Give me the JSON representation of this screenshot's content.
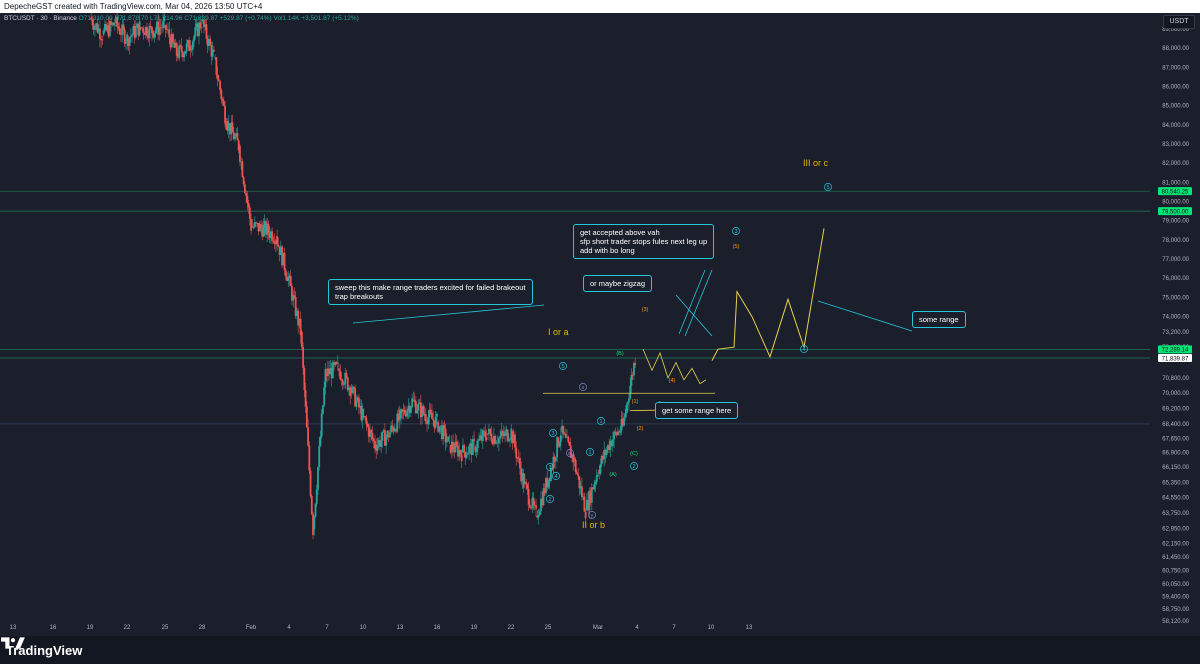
{
  "topbar": {
    "text": "DepecheGST created with TradingView.com, Mar 04, 2026 13:50 UTC+4"
  },
  "legend": {
    "symbol": "BTCUSDT · 30 · Binance",
    "ohlc": "O71,310.00 H71,878.70 L71,214.96 C71,839.87 +529.87 (+0.74%) Vol1.14K +3,501.87 (+5.12%)"
  },
  "currency": "USDT",
  "footer": {
    "brand": "TradingView"
  },
  "colors": {
    "background": "#1b1f2c",
    "up": "#26a69a",
    "down": "#ef5350",
    "projection": "#e6d14a",
    "note_border": "#26c6da",
    "level_green": "#00e676",
    "axis_text": "#b2b5be"
  },
  "notes": {
    "sweep": "sweep this make range traders excited for failed brakeout\ntrap breakouts",
    "accepted": "get accepted above vah\nsfp short trader stops fules next leg up\nadd with bo long",
    "zigzag": "or maybe zigzag",
    "range_here": "get some range here",
    "some_range": "some range"
  },
  "wave_labels": {
    "i_or_a": "I or a",
    "ii_or_b": "II or b",
    "iii_or_c": "III or c"
  },
  "chart_data": {
    "type": "line",
    "symbol": "BTCUSDT",
    "timeframe": "30",
    "exchange": "Binance",
    "y_axis_ticks": [
      "89,000.00",
      "88,000.00",
      "87,000.00",
      "86,000.00",
      "85,000.00",
      "84,000.00",
      "83,000.00",
      "82,000.00",
      "81,000.00",
      "80,000.00",
      "79,000.00",
      "78,000.00",
      "77,000.00",
      "76,000.00",
      "75,000.00",
      "74,000.00",
      "73,200.00",
      "72,400.00",
      "70,800.00",
      "70,000.00",
      "69,200.00",
      "68,400.00",
      "67,650.00",
      "66,900.00",
      "66,150.00",
      "65,350.00",
      "64,550.00",
      "63,750.00",
      "62,950.00",
      "62,150.00",
      "61,450.00",
      "60,750.00",
      "60,050.00",
      "59,400.00",
      "58,750.00",
      "58,120.00"
    ],
    "x_axis_ticks": [
      "13",
      "16",
      "19",
      "22",
      "25",
      "28",
      "Feb",
      "4",
      "7",
      "10",
      "13",
      "16",
      "19",
      "22",
      "25",
      "Mar",
      "4",
      "7",
      "10",
      "13"
    ],
    "price_tags": [
      {
        "label": "80,540.25",
        "value": 80540.25,
        "color": "#00e676"
      },
      {
        "label": "79,500.00",
        "value": 79500.0,
        "color": "#00e676"
      },
      {
        "label": "72,289.14",
        "value": 72289.14,
        "color": "#00e676"
      },
      {
        "label": "71,839.87",
        "value": 71839.87,
        "color": "#ffffff"
      }
    ],
    "horizontal_levels": [
      80540.25,
      79500.0,
      72289.14,
      71839.87,
      68400.0
    ],
    "price_series": [
      [
        "Jan 19",
        89600
      ],
      [
        "Jan 20",
        88700
      ],
      [
        "Jan 21",
        89300
      ],
      [
        "Jan 22",
        88500
      ],
      [
        "Jan 23",
        89100
      ],
      [
        "Jan 24",
        88900
      ],
      [
        "Jan 25",
        89200
      ],
      [
        "Jan 26",
        87700
      ],
      [
        "Jan 27",
        88100
      ],
      [
        "Jan 28",
        89400
      ],
      [
        "Jan 29",
        87500
      ],
      [
        "Jan 30",
        84200
      ],
      [
        "Jan 31",
        82900
      ],
      [
        "Feb 1",
        78700
      ],
      [
        "Feb 2",
        78600
      ],
      [
        "Feb 3",
        78200
      ],
      [
        "Feb 4",
        76000
      ],
      [
        "Feb 5",
        73200
      ],
      [
        "Feb 6",
        62900
      ],
      [
        "Feb 7",
        71000
      ],
      [
        "Feb 8",
        71300
      ],
      [
        "Feb 9",
        70300
      ],
      [
        "Feb 10",
        68800
      ],
      [
        "Feb 11",
        67300
      ],
      [
        "Feb 12",
        67800
      ],
      [
        "Feb 13",
        68700
      ],
      [
        "Feb 14",
        69600
      ],
      [
        "Feb 15",
        68900
      ],
      [
        "Feb 16",
        68500
      ],
      [
        "Feb 17",
        67300
      ],
      [
        "Feb 18",
        66900
      ],
      [
        "Feb 19",
        67200
      ],
      [
        "Feb 20",
        67900
      ],
      [
        "Feb 21",
        67650
      ],
      [
        "Feb 22",
        68000
      ],
      [
        "Feb 23",
        65300
      ],
      [
        "Feb 24",
        63600
      ],
      [
        "Feb 25",
        65600
      ],
      [
        "Feb 26",
        68000
      ],
      [
        "Feb 27",
        66600
      ],
      [
        "Feb 28",
        63900
      ],
      [
        "Mar 1",
        66000
      ],
      [
        "Mar 2",
        67500
      ],
      [
        "Mar 3",
        68300
      ],
      [
        "Mar 4",
        71840
      ]
    ],
    "projection_series": [
      [
        "Mar 5",
        72300
      ],
      [
        "Mar 6",
        71100
      ],
      [
        "Mar 7",
        72100
      ],
      [
        "Mar 8",
        70600
      ],
      [
        "Mar 9",
        70900
      ],
      [
        "Mar 10",
        72100
      ],
      [
        "Mar 11",
        75300
      ],
      [
        "Mar 12",
        73600
      ],
      [
        "Mar 13",
        72800
      ],
      [
        "Mar 14",
        74900
      ],
      [
        "Mar 15",
        72500
      ],
      [
        "Mar 16",
        78600
      ]
    ],
    "wave_counts": [
      "1",
      "2",
      "3",
      "4",
      "5",
      "(1)",
      "(2)",
      "(3)",
      "(4)",
      "(5)",
      "(A)",
      "(B)",
      "(C)",
      "w",
      "x",
      "y",
      "i",
      "ii",
      "iii"
    ]
  }
}
